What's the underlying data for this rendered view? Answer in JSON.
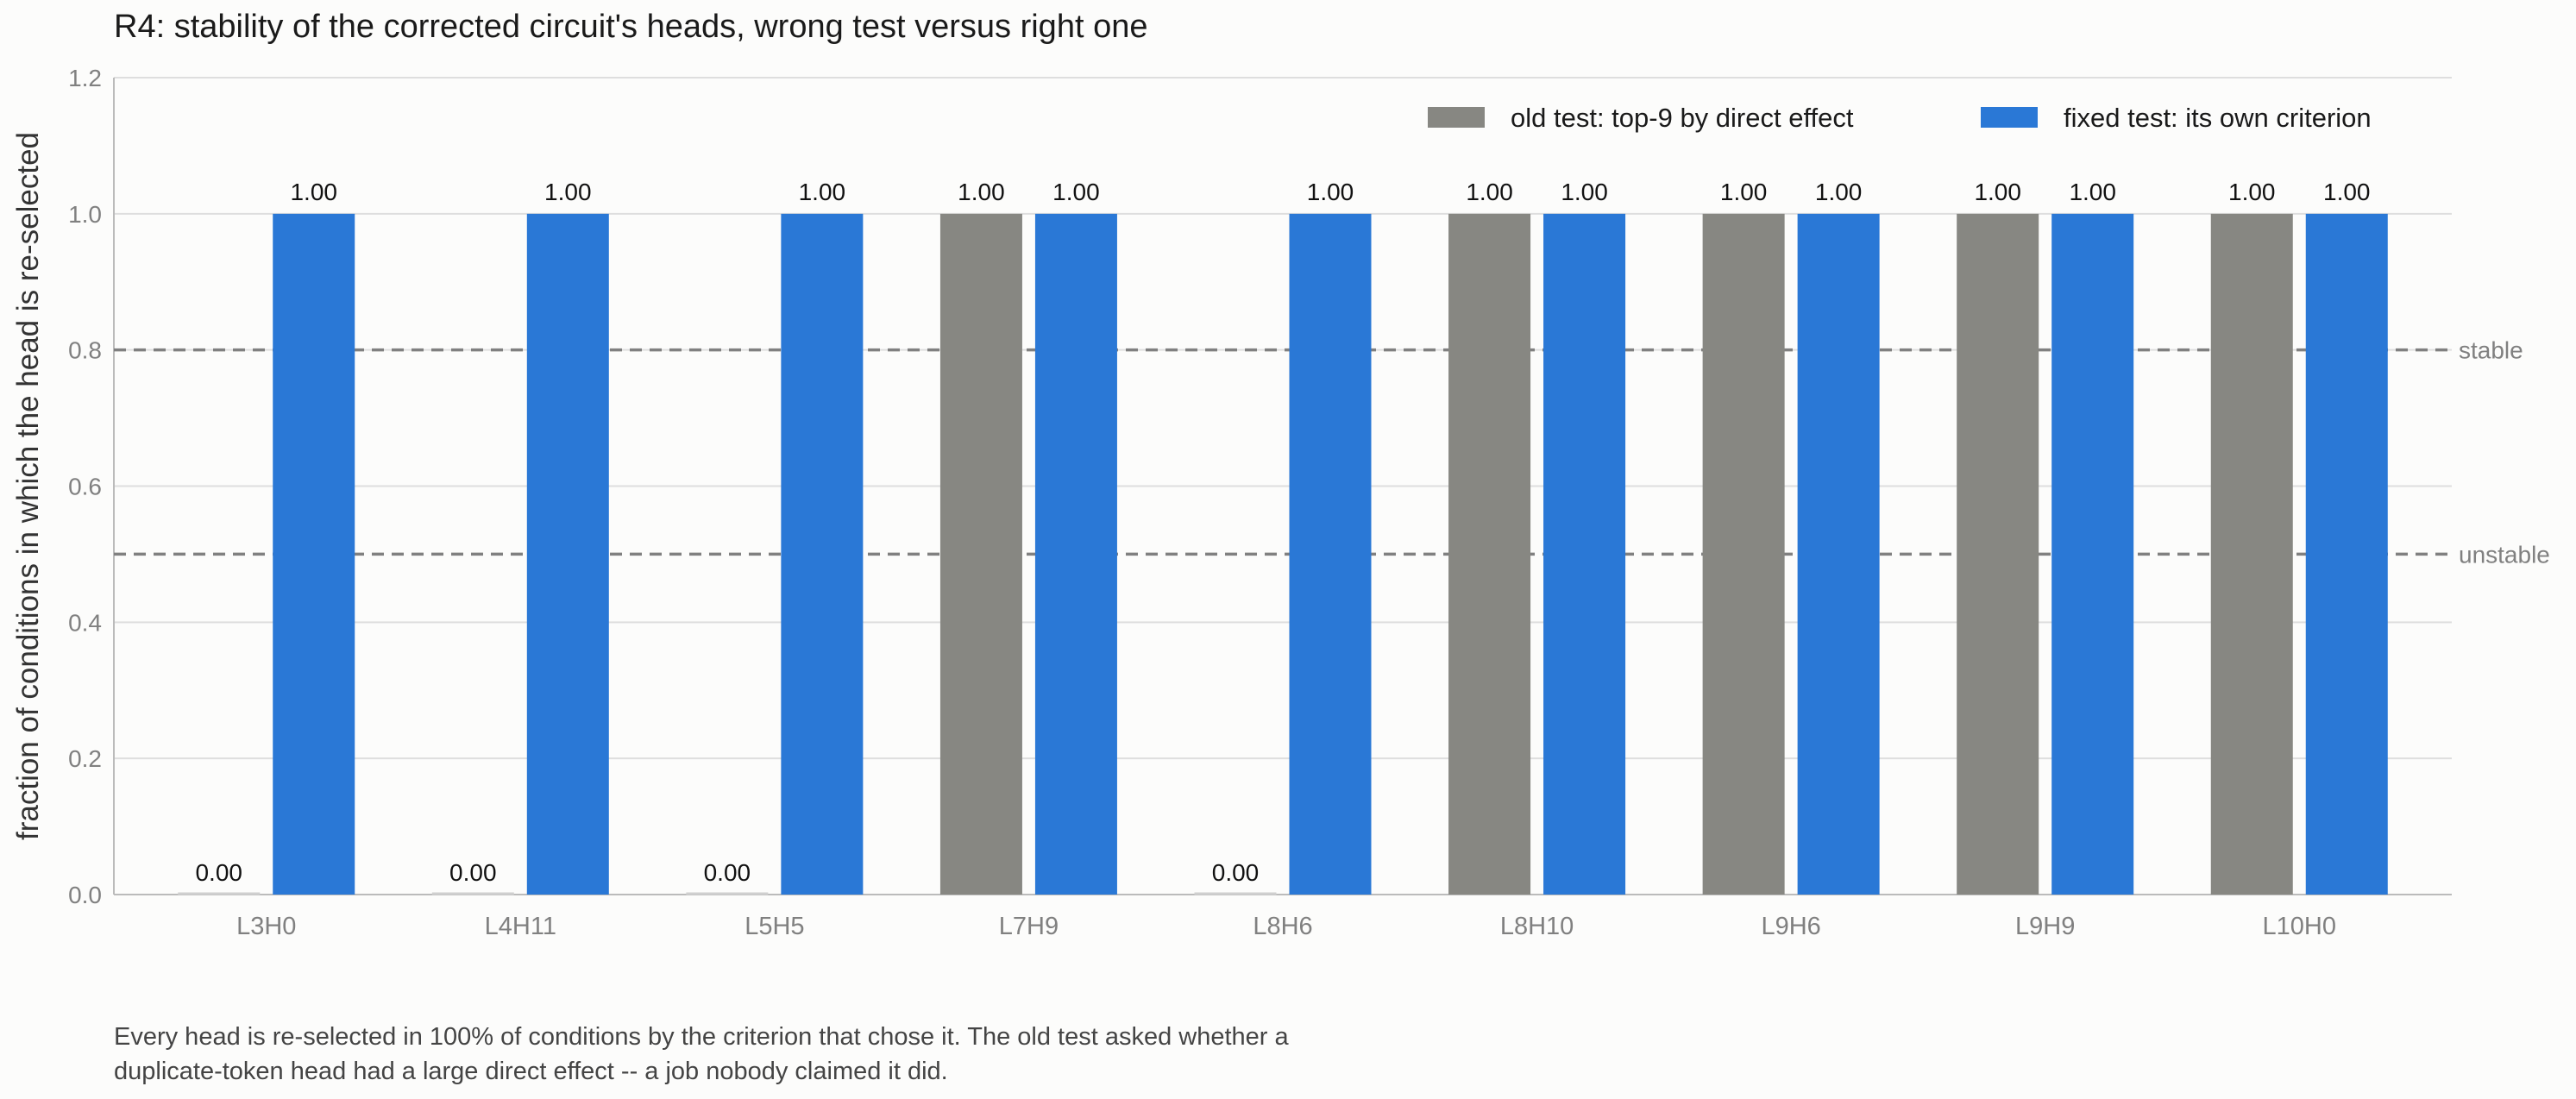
{
  "chart_data": {
    "type": "bar",
    "title": "R4: stability of the corrected circuit's heads, wrong test versus right one",
    "xlabel": "",
    "ylabel": "fraction of conditions in which the head is re-selected",
    "ylim": [
      0,
      1.2
    ],
    "yticks": [
      "0.0",
      "0.2",
      "0.4",
      "0.6",
      "0.8",
      "1.0",
      "1.2"
    ],
    "grid": "horizontal",
    "legend_position": "top-right",
    "categories": [
      "L3H0",
      "L4H11",
      "L5H5",
      "L7H9",
      "L8H6",
      "L8H10",
      "L9H6",
      "L9H9",
      "L10H0"
    ],
    "series": [
      {
        "name": "old test: top-9 by direct effect",
        "color": "#878782",
        "values": [
          0,
          0,
          0,
          1,
          0,
          1,
          1,
          1,
          1
        ],
        "labels": [
          "0.00",
          "0.00",
          "0.00",
          "1.00",
          "0.00",
          "1.00",
          "1.00",
          "1.00",
          "1.00"
        ]
      },
      {
        "name": "fixed test: its own criterion",
        "color": "#2a78d6",
        "values": [
          1,
          1,
          1,
          1,
          1,
          1,
          1,
          1,
          1
        ],
        "labels": [
          "1.00",
          "1.00",
          "1.00",
          "1.00",
          "1.00",
          "1.00",
          "1.00",
          "1.00",
          "1.00"
        ]
      }
    ],
    "reference_lines": [
      {
        "value": 0.8,
        "label": "stable"
      },
      {
        "value": 0.5,
        "label": "unstable"
      }
    ],
    "caption": [
      "Every head is re-selected in 100% of conditions by the criterion that chose it. The old test asked whether a",
      "duplicate-token head had a large direct effect -- a job nobody claimed it did."
    ]
  }
}
